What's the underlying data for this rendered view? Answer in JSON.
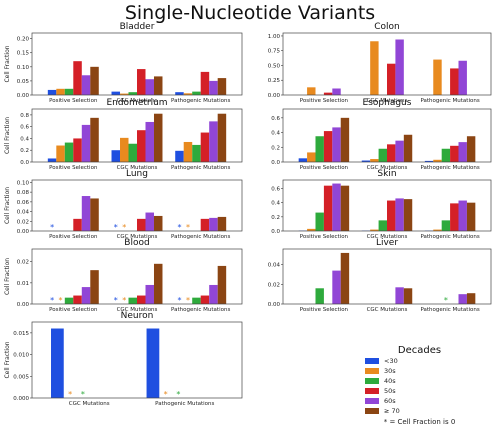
{
  "figure_title": "Single-Nucleotide Variants",
  "legend": {
    "title": "Decades",
    "entries": [
      {
        "label": "<30",
        "color": "#1f4fe0"
      },
      {
        "label": "30s",
        "color": "#e88a1f"
      },
      {
        "label": "40s",
        "color": "#2eaa3c"
      },
      {
        "label": "50s",
        "color": "#d42027"
      },
      {
        "label": "60s",
        "color": "#9146d6"
      },
      {
        "label": "≥ 70",
        "color": "#8b4513"
      }
    ],
    "footnote": "* = Cell Fraction is 0"
  },
  "chart_data": [
    {
      "type": "bar",
      "title": "Bladder",
      "ylabel": "Cell Fraction",
      "categories": [
        "Positive Selection",
        "CGC Mutations",
        "Pathogenic Mutations"
      ],
      "yticks": [
        "0.00",
        "0.05",
        "0.10",
        "0.15",
        "0.20"
      ],
      "ylim": [
        0,
        0.22
      ],
      "series": [
        {
          "name": "<30",
          "values": [
            0.018,
            0.012,
            0.01
          ]
        },
        {
          "name": "30s",
          "values": [
            0.022,
            0.005,
            0.006
          ]
        },
        {
          "name": "40s",
          "values": [
            0.022,
            0.01,
            0.012
          ]
        },
        {
          "name": "50s",
          "values": [
            0.12,
            0.092,
            0.082
          ]
        },
        {
          "name": "60s",
          "values": [
            0.07,
            0.056,
            0.05
          ]
        },
        {
          "name": "≥ 70",
          "values": [
            0.1,
            0.066,
            0.06
          ]
        }
      ]
    },
    {
      "type": "bar",
      "title": "Colon",
      "ylabel": "",
      "categories": [
        "Positive Selection",
        "CGC Mutations",
        "Pathogenic Mutations"
      ],
      "yticks": [
        "0.00",
        "0.25",
        "0.50",
        "0.75",
        "1.00"
      ],
      "ylim": [
        0,
        1.05
      ],
      "series": [
        {
          "name": "<30",
          "values": [
            0,
            0,
            0
          ]
        },
        {
          "name": "30s",
          "values": [
            0.13,
            0.91,
            0.6
          ]
        },
        {
          "name": "40s",
          "values": [
            0,
            0,
            0
          ]
        },
        {
          "name": "50s",
          "values": [
            0.04,
            0.53,
            0.45
          ]
        },
        {
          "name": "60s",
          "values": [
            0.11,
            0.94,
            0.58
          ]
        },
        {
          "name": "≥ 70",
          "values": [
            0,
            0,
            0
          ]
        }
      ]
    },
    {
      "type": "bar",
      "title": "Endometrium",
      "ylabel": "Cell Fraction",
      "categories": [
        "Positive Selection",
        "CGC Mutations",
        "Pathogenic Mutations"
      ],
      "yticks": [
        "0.0",
        "0.2",
        "0.4",
        "0.6",
        "0.8"
      ],
      "ylim": [
        0,
        0.9
      ],
      "series": [
        {
          "name": "<30",
          "values": [
            0.06,
            0.2,
            0.19
          ]
        },
        {
          "name": "30s",
          "values": [
            0.28,
            0.41,
            0.34
          ]
        },
        {
          "name": "40s",
          "values": [
            0.33,
            0.31,
            0.29
          ]
        },
        {
          "name": "50s",
          "values": [
            0.4,
            0.54,
            0.5
          ]
        },
        {
          "name": "60s",
          "values": [
            0.63,
            0.68,
            0.69
          ]
        },
        {
          "name": "≥ 70",
          "values": [
            0.75,
            0.82,
            0.82
          ]
        }
      ]
    },
    {
      "type": "bar",
      "title": "Esophagus",
      "ylabel": "",
      "categories": [
        "Positive Selection",
        "CGC Mutations",
        "Pathogenic Mutations"
      ],
      "yticks": [
        "0.0",
        "0.2",
        "0.4",
        "0.6"
      ],
      "ylim": [
        0,
        0.72
      ],
      "series": [
        {
          "name": "<30",
          "values": [
            0.05,
            0.02,
            0.015
          ]
        },
        {
          "name": "30s",
          "values": [
            0.13,
            0.04,
            0.03
          ]
        },
        {
          "name": "40s",
          "values": [
            0.35,
            0.18,
            0.18
          ]
        },
        {
          "name": "50s",
          "values": [
            0.42,
            0.24,
            0.22
          ]
        },
        {
          "name": "60s",
          "values": [
            0.47,
            0.29,
            0.27
          ]
        },
        {
          "name": "≥ 70",
          "values": [
            0.6,
            0.37,
            0.35
          ]
        }
      ]
    },
    {
      "type": "bar",
      "title": "Lung",
      "ylabel": "Cell Fraction",
      "categories": [
        "Positive Selection",
        "CGC Mutations",
        "Pathogenic Mutations"
      ],
      "yticks": [
        "0.00",
        "0.02",
        "0.04",
        "0.06",
        "0.08",
        "0.10"
      ],
      "ylim": [
        0,
        0.105
      ],
      "series": [
        {
          "name": "<30",
          "values": [
            0,
            0,
            0
          ]
        },
        {
          "name": "30s",
          "values": [
            0,
            0,
            0
          ]
        },
        {
          "name": "40s",
          "values": [
            0,
            0,
            0
          ]
        },
        {
          "name": "50s",
          "values": [
            0.025,
            0.025,
            0.025
          ]
        },
        {
          "name": "60s",
          "values": [
            0.072,
            0.038,
            0.027
          ]
        },
        {
          "name": "≥ 70",
          "values": [
            0.067,
            0.031,
            0.029
          ]
        }
      ],
      "zero_markers": [
        [
          0,
          0
        ],
        [
          1,
          0
        ],
        [
          1,
          1
        ],
        [
          2,
          0
        ],
        [
          2,
          1
        ]
      ]
    },
    {
      "type": "bar",
      "title": "Skin",
      "ylabel": "",
      "categories": [
        "Positive Selection",
        "CGC Mutations",
        "Pathogenic Mutations"
      ],
      "yticks": [
        "0.0",
        "0.2",
        "0.4",
        "0.6"
      ],
      "ylim": [
        0,
        0.72
      ],
      "series": [
        {
          "name": "<30",
          "values": [
            0.005,
            0.005,
            0.005
          ]
        },
        {
          "name": "30s",
          "values": [
            0.03,
            0.02,
            0.02
          ]
        },
        {
          "name": "40s",
          "values": [
            0.26,
            0.15,
            0.15
          ]
        },
        {
          "name": "50s",
          "values": [
            0.64,
            0.43,
            0.39
          ]
        },
        {
          "name": "60s",
          "values": [
            0.67,
            0.46,
            0.43
          ]
        },
        {
          "name": "≥ 70",
          "values": [
            0.64,
            0.45,
            0.4
          ]
        }
      ]
    },
    {
      "type": "bar",
      "title": "Blood",
      "ylabel": "Cell Fraction",
      "categories": [
        "Positive Selection",
        "CGC Mutations",
        "Pathogenic Mutations"
      ],
      "yticks": [
        "0.00",
        "0.01",
        "0.02"
      ],
      "ylim": [
        0,
        0.026
      ],
      "series": [
        {
          "name": "<30",
          "values": [
            0,
            0,
            0
          ]
        },
        {
          "name": "30s",
          "values": [
            0,
            0,
            0
          ]
        },
        {
          "name": "40s",
          "values": [
            0.003,
            0.003,
            0.003
          ]
        },
        {
          "name": "50s",
          "values": [
            0.004,
            0.004,
            0.004
          ]
        },
        {
          "name": "60s",
          "values": [
            0.008,
            0.009,
            0.009
          ]
        },
        {
          "name": "≥ 70",
          "values": [
            0.016,
            0.019,
            0.018
          ]
        }
      ],
      "zero_markers": [
        [
          0,
          0
        ],
        [
          0,
          1
        ],
        [
          1,
          0
        ],
        [
          1,
          1
        ],
        [
          2,
          0
        ],
        [
          2,
          1
        ]
      ]
    },
    {
      "type": "bar",
      "title": "Liver",
      "ylabel": "",
      "categories": [
        "Positive Selection",
        "CGC Mutations",
        "Pathogenic Mutations"
      ],
      "yticks": [
        "0.00",
        "0.02",
        "0.04"
      ],
      "ylim": [
        0,
        0.056
      ],
      "series": [
        {
          "name": "<30",
          "values": [
            0,
            0,
            0
          ]
        },
        {
          "name": "30s",
          "values": [
            0,
            0,
            0
          ]
        },
        {
          "name": "40s",
          "values": [
            0.016,
            0,
            0
          ]
        },
        {
          "name": "50s",
          "values": [
            0,
            0,
            0
          ]
        },
        {
          "name": "60s",
          "values": [
            0.034,
            0.017,
            0.01
          ]
        },
        {
          "name": "≥ 70",
          "values": [
            0.052,
            0.016,
            0.011
          ]
        }
      ],
      "zero_markers": [
        [
          2,
          2
        ]
      ]
    },
    {
      "type": "bar",
      "title": "Neuron",
      "ylabel": "Cell Fraction",
      "categories": [
        "CGC Mutations",
        "Pathogenic Mutations"
      ],
      "yticks": [
        "0.000",
        "0.005",
        "0.010",
        "0.015"
      ],
      "ylim": [
        0,
        0.0175
      ],
      "series": [
        {
          "name": "<30",
          "values": [
            0.016,
            0.016
          ]
        },
        {
          "name": "30s",
          "values": [
            0,
            0
          ]
        },
        {
          "name": "40s",
          "values": [
            0,
            0
          ]
        },
        {
          "name": "50s",
          "values": [
            0,
            0
          ]
        },
        {
          "name": "60s",
          "values": [
            0,
            0
          ]
        },
        {
          "name": "≥ 70",
          "values": [
            0,
            0
          ]
        }
      ],
      "zero_markers": [
        [
          0,
          2
        ],
        [
          0,
          1
        ],
        [
          1,
          2
        ],
        [
          1,
          1
        ]
      ]
    }
  ]
}
